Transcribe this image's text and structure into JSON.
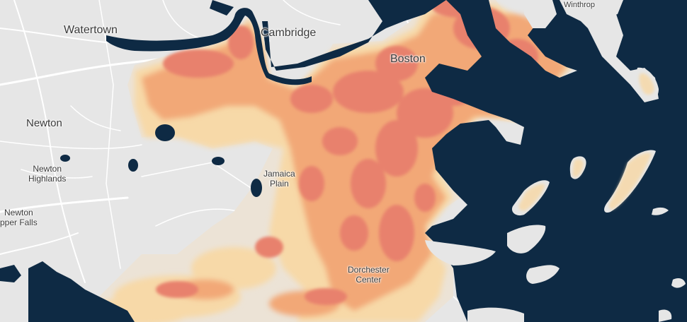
{
  "map": {
    "colors": {
      "water": "#0e2a44",
      "land": "#e6e6e6",
      "road": "#ffffff",
      "study_area_base": "#ece3d6",
      "heat_low": "#f7d9a8",
      "heat_mid": "#f2a877",
      "heat_high": "#e8816d"
    },
    "labels": {
      "watertown": "Watertown",
      "cambridge": "Cambridge",
      "boston": "Boston",
      "winthrop": "Winthrop",
      "newton": "Newton",
      "newton_highlands_1": "Newton",
      "newton_highlands_2": "Highlands",
      "newton_upper_falls_1": "Newton",
      "newton_upper_falls_2": "pper Falls",
      "jamaica_plain_1": "Jamaica",
      "jamaica_plain_2": "Plain",
      "dorchester_center_1": "Dorchester",
      "dorchester_center_2": "Center"
    }
  }
}
